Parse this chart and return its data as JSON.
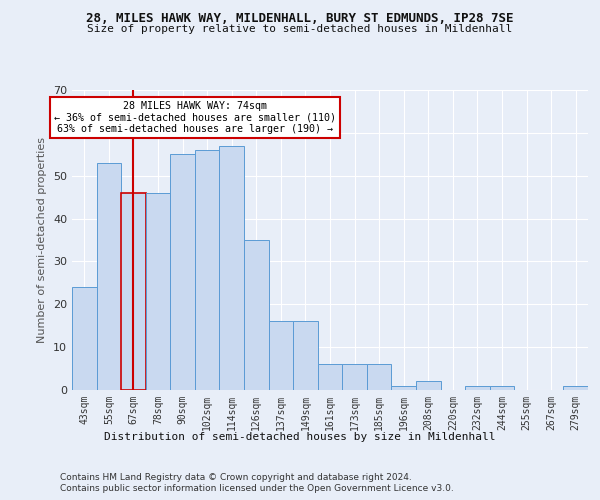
{
  "title1": "28, MILES HAWK WAY, MILDENHALL, BURY ST EDMUNDS, IP28 7SE",
  "title2": "Size of property relative to semi-detached houses in Mildenhall",
  "xlabel": "Distribution of semi-detached houses by size in Mildenhall",
  "ylabel": "Number of semi-detached properties",
  "footnote1": "Contains HM Land Registry data © Crown copyright and database right 2024.",
  "footnote2": "Contains public sector information licensed under the Open Government Licence v3.0.",
  "categories": [
    "43sqm",
    "55sqm",
    "67sqm",
    "78sqm",
    "90sqm",
    "102sqm",
    "114sqm",
    "126sqm",
    "137sqm",
    "149sqm",
    "161sqm",
    "173sqm",
    "185sqm",
    "196sqm",
    "208sqm",
    "220sqm",
    "232sqm",
    "244sqm",
    "255sqm",
    "267sqm",
    "279sqm"
  ],
  "values": [
    24,
    53,
    46,
    46,
    55,
    56,
    57,
    35,
    16,
    16,
    6,
    6,
    6,
    1,
    2,
    0,
    1,
    1,
    0,
    0,
    1
  ],
  "bar_color": "#c9d9f0",
  "bar_edge_color": "#5b9bd5",
  "highlight_bar_index": 2,
  "vline_color": "#cc0000",
  "vline_x": 2,
  "annotation_line1": "28 MILES HAWK WAY: 74sqm",
  "annotation_line2": "← 36% of semi-detached houses are smaller (110)",
  "annotation_line3": "63% of semi-detached houses are larger (190) →",
  "annotation_box_edge": "#cc0000",
  "ylim": [
    0,
    70
  ],
  "yticks": [
    0,
    10,
    20,
    30,
    40,
    50,
    60,
    70
  ],
  "bg_color": "#e8eef8",
  "plot_bg_color": "#e8eef8",
  "grid_color": "#ffffff"
}
